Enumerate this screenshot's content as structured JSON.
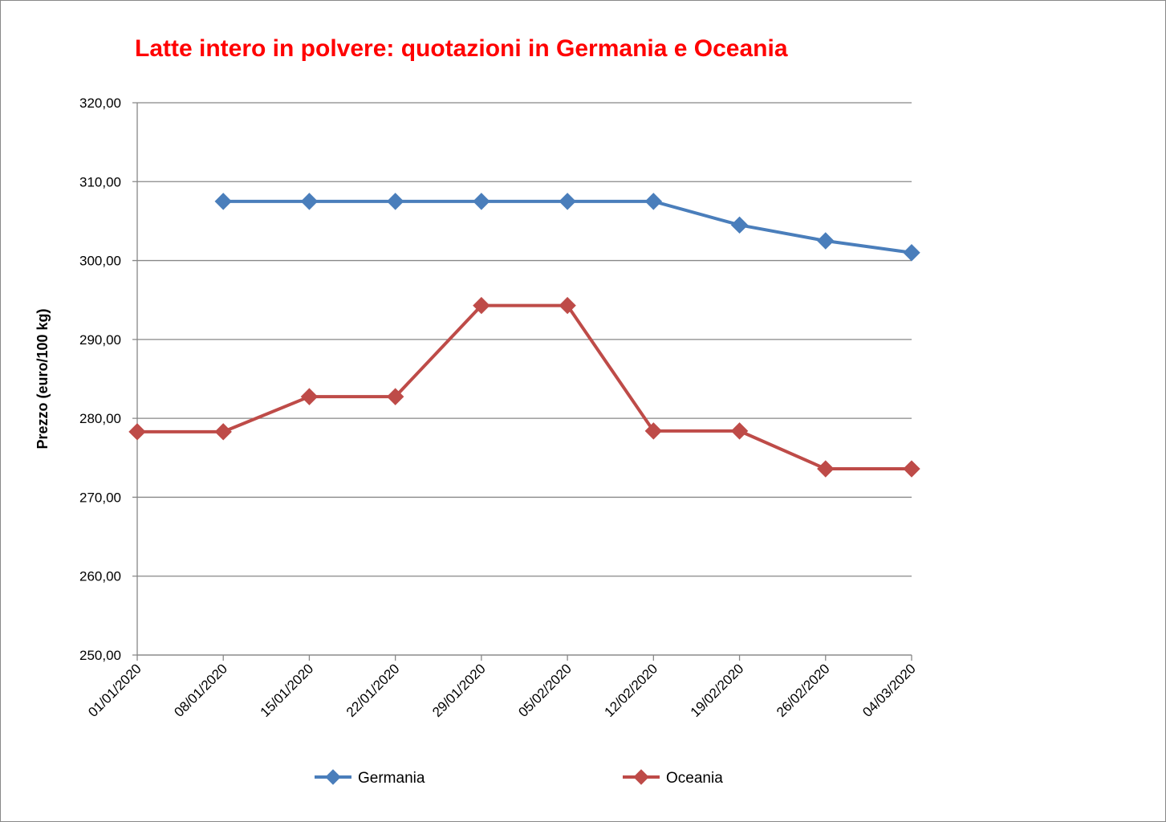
{
  "chart_data": {
    "type": "line",
    "title": "Latte intero in polvere: quotazioni in Germania e Oceania",
    "xlabel": "",
    "ylabel": "Prezzo (euro/100 kg)",
    "ylim": [
      250,
      320
    ],
    "yticks": [
      "250,00",
      "260,00",
      "270,00",
      "280,00",
      "290,00",
      "300,00",
      "310,00",
      "320,00"
    ],
    "categories": [
      "01/01/2020",
      "08/01/2020",
      "15/01/2020",
      "22/01/2020",
      "29/01/2020",
      "05/02/2020",
      "12/02/2020",
      "19/02/2020",
      "26/02/2020",
      "04/03/2020"
    ],
    "grid": true,
    "legend_position": "bottom",
    "series": [
      {
        "name": "Germania",
        "color": "#4a7ebb",
        "values": [
          null,
          307.5,
          307.5,
          307.5,
          307.5,
          307.5,
          307.5,
          304.5,
          302.5,
          301.0
        ]
      },
      {
        "name": "Oceania",
        "color": "#be4b48",
        "values": [
          278.3,
          278.3,
          282.75,
          282.75,
          294.3,
          294.3,
          278.4,
          278.4,
          273.6,
          273.6
        ]
      }
    ]
  }
}
